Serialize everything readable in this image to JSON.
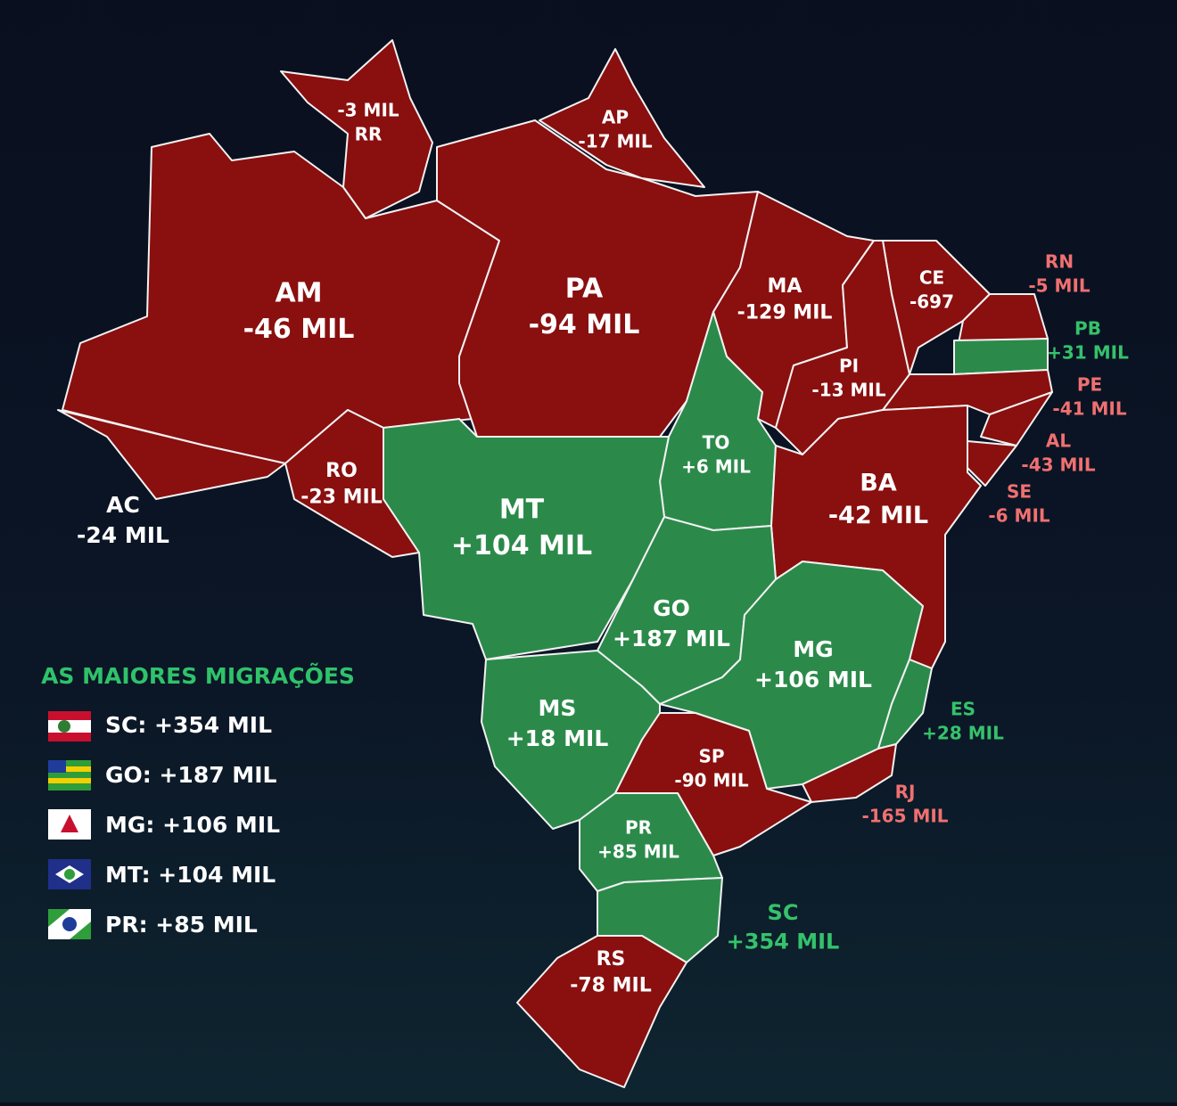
{
  "map": {
    "states": [
      {
        "code": "AM",
        "value": "-46 MIL"
      },
      {
        "code": "PA",
        "value": "-94 MIL"
      },
      {
        "code": "RR",
        "value": "-3 MIL"
      },
      {
        "code": "AP",
        "value": "-17 MIL"
      },
      {
        "code": "MA",
        "value": "-129 MIL"
      },
      {
        "code": "CE",
        "value": "-697"
      },
      {
        "code": "RN",
        "value": "-5 MIL"
      },
      {
        "code": "PB",
        "value": "+31 MIL"
      },
      {
        "code": "PE",
        "value": "-41 MIL"
      },
      {
        "code": "AL",
        "value": "-43 MIL"
      },
      {
        "code": "SE",
        "value": "-6 MIL"
      },
      {
        "code": "PI",
        "value": "-13 MIL"
      },
      {
        "code": "TO",
        "value": "+6 MIL"
      },
      {
        "code": "BA",
        "value": "-42 MIL"
      },
      {
        "code": "AC",
        "value": "-24 MIL"
      },
      {
        "code": "RO",
        "value": "-23 MIL"
      },
      {
        "code": "MT",
        "value": "+104 MIL"
      },
      {
        "code": "GO",
        "value": "+187 MIL"
      },
      {
        "code": "MG",
        "value": "+106 MIL"
      },
      {
        "code": "ES",
        "value": "+28 MIL"
      },
      {
        "code": "MS",
        "value": "+18 MIL"
      },
      {
        "code": "SP",
        "value": "-90 MIL"
      },
      {
        "code": "RJ",
        "value": "-165 MIL"
      },
      {
        "code": "PR",
        "value": "+85 MIL"
      },
      {
        "code": "SC",
        "value": "+354 MIL"
      },
      {
        "code": "RS",
        "value": "-78 MIL"
      }
    ]
  },
  "legend": {
    "title": "AS MAIORES MIGRAÇÕES",
    "items": [
      "SC: +354 MIL",
      "GO: +187 MIL",
      "MG: +106 MIL",
      "MT: +104 MIL",
      "PR: +85 MIL"
    ]
  }
}
